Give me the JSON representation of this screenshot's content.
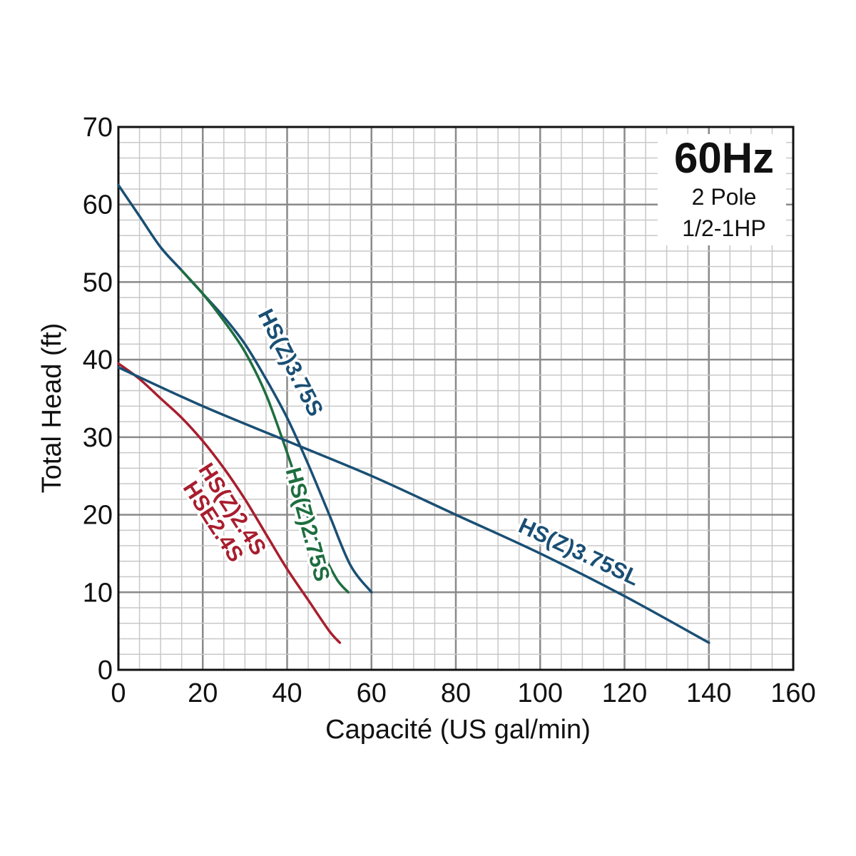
{
  "chart_data": {
    "type": "line",
    "title": "",
    "xlabel": "Capacité (US gal/min)",
    "ylabel": "Total Head (ft)",
    "xlim": [
      0,
      160
    ],
    "ylim": [
      0,
      70
    ],
    "xticks": [
      0,
      20,
      40,
      60,
      80,
      100,
      120,
      140,
      160
    ],
    "yticks": [
      0,
      10,
      20,
      30,
      40,
      50,
      60,
      70
    ],
    "grid": true,
    "info_box": {
      "title": "60Hz",
      "lines": [
        "2 Pole",
        "1/2-1HP"
      ],
      "placement": "top-right"
    },
    "series": [
      {
        "name": "HS(Z)3.75S",
        "color": "#1a4f74",
        "x": [
          0,
          5,
          10,
          15,
          20,
          25,
          30,
          35,
          40,
          45,
          50,
          55,
          60
        ],
        "y": [
          62.5,
          58.5,
          54.5,
          51.5,
          48.5,
          45.5,
          42,
          37.5,
          32.5,
          26.5,
          20,
          13.5,
          10
        ]
      },
      {
        "name": "HS(Z)2.75S",
        "color": "#1e6e3f",
        "x": [
          15,
          20,
          25,
          30,
          35,
          40,
          43,
          46,
          49,
          52,
          54.5
        ],
        "y": [
          51.5,
          48.5,
          45,
          41,
          35.5,
          28,
          23,
          18,
          14.5,
          11.5,
          10
        ]
      },
      {
        "name": "HS(Z)2.4S\nHSE2.4S",
        "color": "#a81e2e",
        "x": [
          0,
          5,
          10,
          15,
          20,
          25,
          30,
          35,
          40,
          45,
          50,
          52.5
        ],
        "y": [
          39.5,
          37.5,
          35,
          32.5,
          29.5,
          26,
          22,
          17.5,
          13,
          9,
          5,
          3.5
        ]
      },
      {
        "name": "HS(Z)3.75SL",
        "color": "#1a4f74",
        "x": [
          0,
          20,
          40,
          60,
          80,
          100,
          120,
          140
        ],
        "y": [
          39,
          34,
          29.5,
          25,
          20,
          15,
          9.5,
          3.5
        ]
      }
    ]
  }
}
